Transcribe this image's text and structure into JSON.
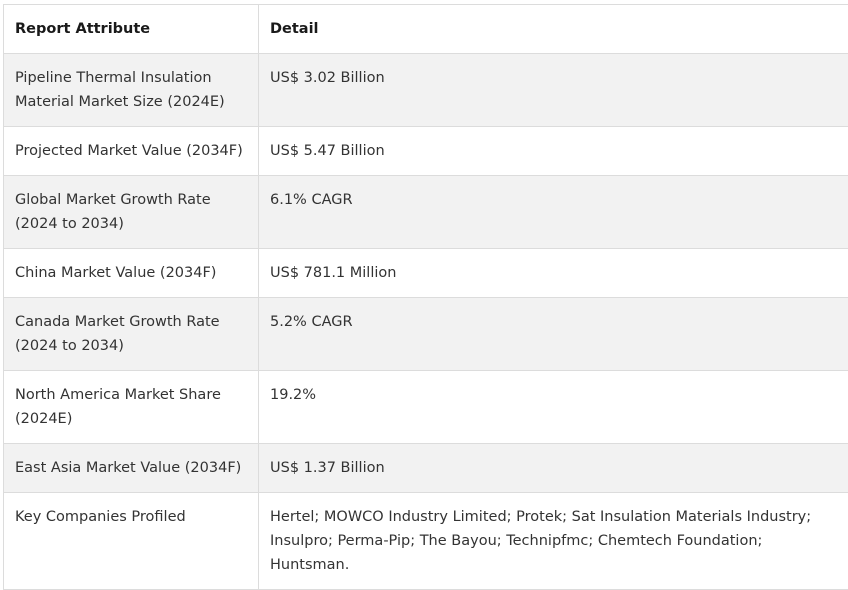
{
  "table": {
    "headers": [
      "Report Attribute",
      "Detail"
    ],
    "rows": [
      {
        "attribute": "Pipeline Thermal Insulation Material Market Size (2024E)",
        "detail": "US$ 3.02 Billion"
      },
      {
        "attribute": "Projected Market Value (2034F)",
        "detail": "US$ 5.47 Billion"
      },
      {
        "attribute": "Global Market Growth Rate (2024 to 2034)",
        "detail": "6.1% CAGR"
      },
      {
        "attribute": "China Market Value (2034F)",
        "detail": "US$ 781.1 Million"
      },
      {
        "attribute": "Canada Market Growth Rate (2024 to 2034)",
        "detail": "5.2% CAGR"
      },
      {
        "attribute": "North America Market Share (2024E)",
        "detail": "19.2%"
      },
      {
        "attribute": "East Asia Market Value (2034F)",
        "detail": "US$ 1.37 Billion"
      },
      {
        "attribute": "Key Companies Profiled",
        "detail": "Hertel; MOWCO Industry Limited; Protek; Sat Insulation Materials Industry; Insulpro; Perma-Pip; The Bayou; Technipfmc; Chemtech Foundation; Huntsman."
      }
    ]
  }
}
